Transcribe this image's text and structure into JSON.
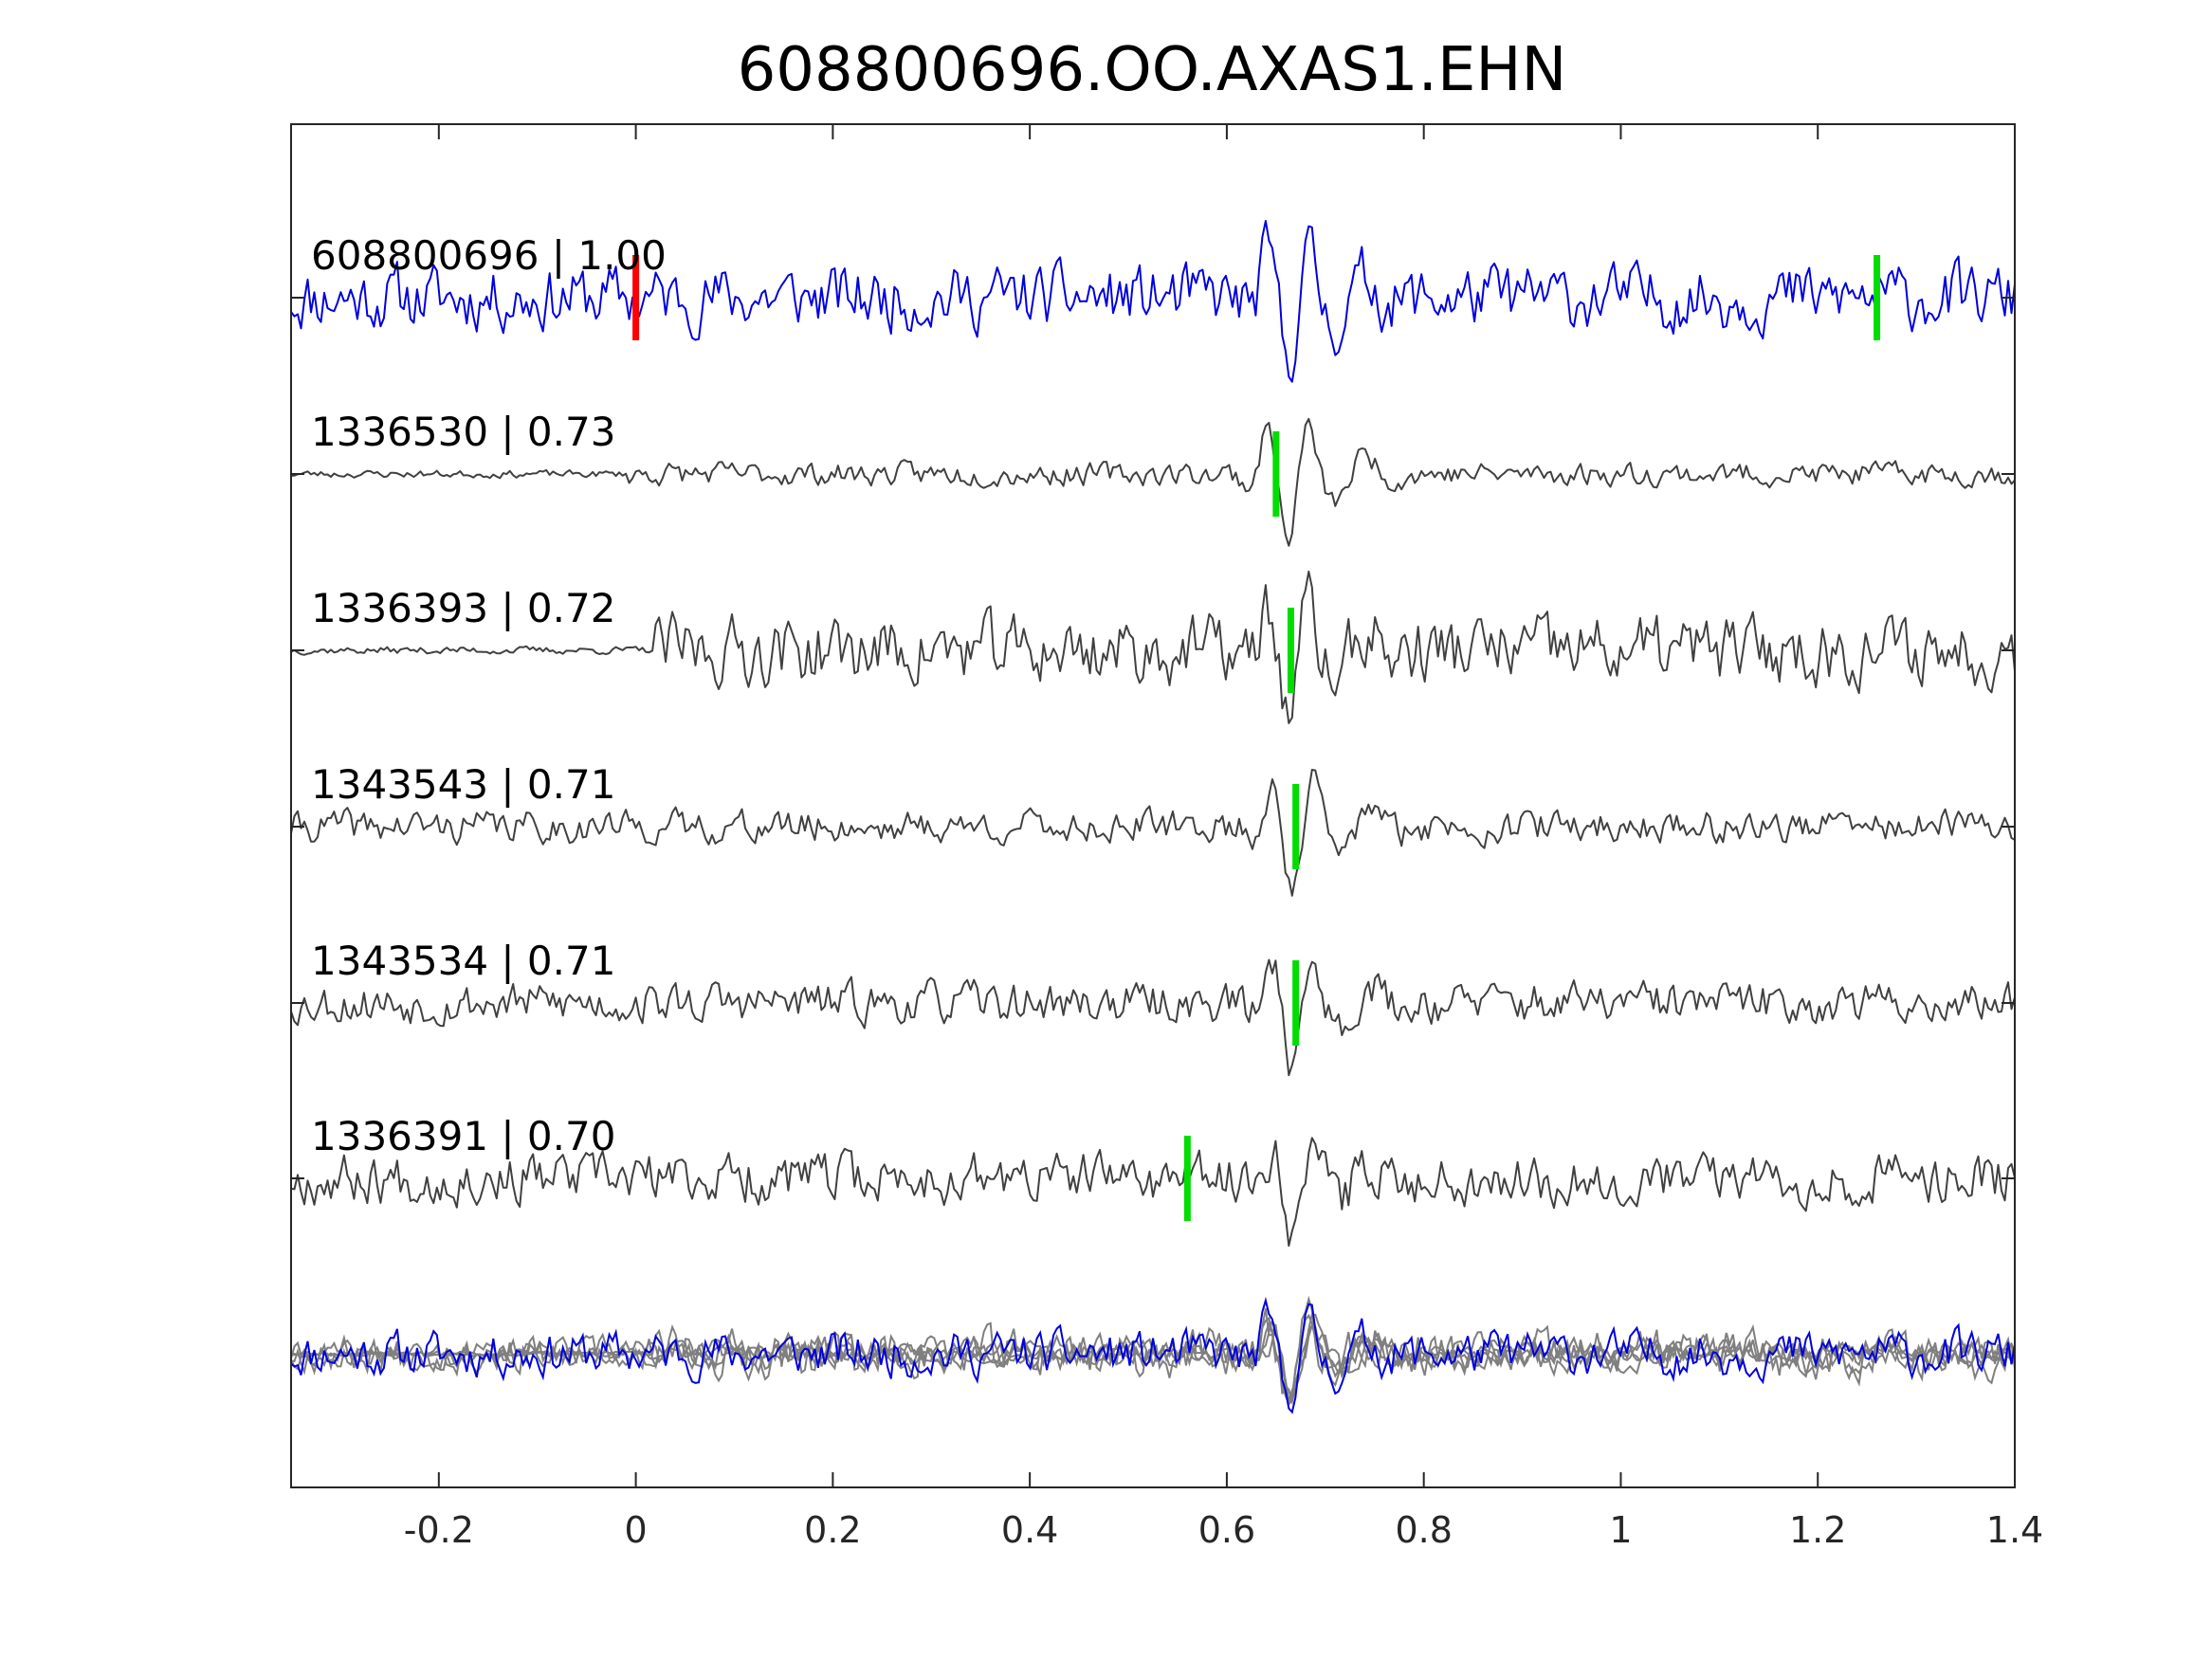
{
  "chart_data": {
    "type": "line",
    "title": "608800696.OO.AXAS1.EHN",
    "xlabel": "",
    "ylabel": "",
    "xlim": [
      -0.35,
      1.4
    ],
    "xticks": [
      -0.2,
      0,
      0.2,
      0.4,
      0.6,
      0.8,
      1,
      1.2,
      1.4
    ],
    "xtick_labels": [
      "-0.2",
      "0",
      "0.2",
      "0.4",
      "0.6",
      "0.8",
      "1",
      "1.2",
      "1.4"
    ],
    "grid": false,
    "colors": {
      "template": "#0000dd",
      "trace": "#404040",
      "overlay": "#7f7f7f",
      "pick_red": "#ff0000",
      "pick_green": "#00dd00"
    },
    "series": [
      {
        "id": "608800696",
        "label": "608800696 | 1.00",
        "cc": 1.0,
        "template": true,
        "signal_start": -0.35,
        "onset": 0.66,
        "arrival_amp": 0.9,
        "noise_amp": 0.7,
        "seed": 11,
        "picks": [
          {
            "t": 0.0,
            "color": "red"
          },
          {
            "t": 1.26,
            "color": "green"
          }
        ]
      },
      {
        "id": "1336530",
        "label": "1336530 | 0.73",
        "cc": 0.73,
        "signal_start": -0.01,
        "onset": 0.66,
        "arrival_amp": 1.0,
        "noise_amp": 0.25,
        "seed": 23,
        "picks": [
          {
            "t": 0.65,
            "color": "green"
          }
        ]
      },
      {
        "id": "1336393",
        "label": "1336393 | 0.72",
        "cc": 0.72,
        "signal_start": 0.02,
        "onset": 0.66,
        "arrival_amp": 0.9,
        "noise_amp": 0.75,
        "seed": 37,
        "picks": [
          {
            "t": 0.665,
            "color": "green"
          }
        ]
      },
      {
        "id": "1343543",
        "label": "1343543 | 0.71",
        "cc": 0.71,
        "signal_start": -0.35,
        "onset": 0.665,
        "arrival_amp": 1.0,
        "noise_amp": 0.35,
        "seed": 41,
        "picks": [
          {
            "t": 0.67,
            "color": "green"
          }
        ]
      },
      {
        "id": "1343534",
        "label": "1343534 | 0.71",
        "cc": 0.71,
        "signal_start": -0.35,
        "onset": 0.665,
        "arrival_amp": 0.9,
        "noise_amp": 0.45,
        "seed": 53,
        "picks": [
          {
            "t": 0.67,
            "color": "green"
          }
        ]
      },
      {
        "id": "1336391",
        "label": "1336391 | 0.70",
        "cc": 0.7,
        "signal_start": -0.35,
        "onset": 0.665,
        "arrival_amp": 0.7,
        "noise_amp": 0.55,
        "seed": 67,
        "picks": [
          {
            "t": 0.56,
            "color": "green"
          }
        ]
      }
    ],
    "overlay": {
      "description_visible": false
    }
  }
}
